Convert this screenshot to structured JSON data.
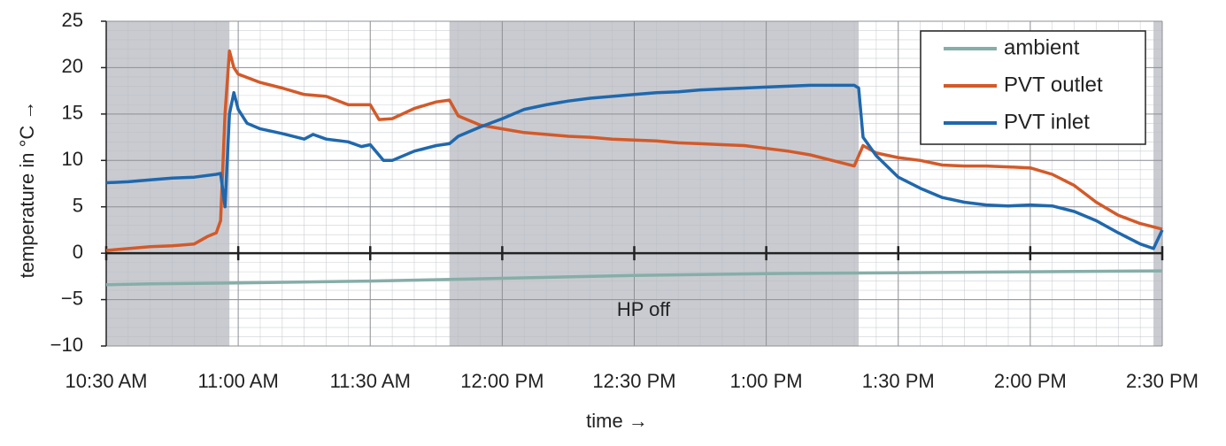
{
  "chart_data": {
    "type": "line",
    "xlabel": "time →",
    "ylabel": "temperature in °C →",
    "xlim": [
      "10:30 AM",
      "2:30 PM"
    ],
    "xticks": [
      "10:30 AM",
      "11:00 AM",
      "11:30 AM",
      "12:00 PM",
      "12:30 PM",
      "1:00 PM",
      "1:30 PM",
      "2:00 PM",
      "2:30 PM"
    ],
    "ylim": [
      -10,
      25
    ],
    "yticks": [
      {
        "value": -10,
        "label": "−10"
      },
      {
        "value": -5,
        "label": "−5"
      },
      0,
      5,
      10,
      15,
      20,
      25
    ],
    "grid": true,
    "legend": "top-right",
    "shaded_regions": [
      {
        "start": "10:30 AM",
        "end": "10:58 AM"
      },
      {
        "start": "11:48 AM",
        "end": "1:21 PM"
      },
      {
        "start": "2:28 PM",
        "end": "2:30 PM"
      }
    ],
    "annotation": "HP off",
    "series": [
      {
        "name": "ambient",
        "color": "#86aea9",
        "x": [
          "10:30 AM",
          "10:40 AM",
          "11:00 AM",
          "11:30 AM",
          "12:00 PM",
          "12:30 PM",
          "1:00 PM",
          "1:30 PM",
          "2:00 PM",
          "2:30 PM"
        ],
        "values": [
          -3.4,
          -3.3,
          -3.2,
          -3.0,
          -2.7,
          -2.4,
          -2.2,
          -2.1,
          -2.0,
          -1.9
        ]
      },
      {
        "name": "PVT outlet",
        "color": "#d35a29",
        "x": [
          "10:30 AM",
          "10:35 AM",
          "10:40 AM",
          "10:45 AM",
          "10:50 AM",
          "10:53 AM",
          "10:55 AM",
          "10:56 AM",
          "10:57 AM",
          "10:58 AM",
          "10:59 AM",
          "11:00 AM",
          "11:05 AM",
          "11:10 AM",
          "11:15 AM",
          "11:20 AM",
          "11:25 AM",
          "11:30 AM",
          "11:32 AM",
          "11:35 AM",
          "11:40 AM",
          "11:45 AM",
          "11:48 AM",
          "11:50 AM",
          "11:55 AM",
          "12:00 PM",
          "12:05 PM",
          "12:10 PM",
          "12:15 PM",
          "12:20 PM",
          "12:25 PM",
          "12:30 PM",
          "12:35 PM",
          "12:40 PM",
          "12:45 PM",
          "12:50 PM",
          "12:55 PM",
          "1:00 PM",
          "1:05 PM",
          "1:10 PM",
          "1:15 PM",
          "1:20 PM",
          "1:22 PM",
          "1:25 PM",
          "1:30 PM",
          "1:35 PM",
          "1:40 PM",
          "1:45 PM",
          "1:50 PM",
          "1:55 PM",
          "2:00 PM",
          "2:05 PM",
          "2:10 PM",
          "2:15 PM",
          "2:20 PM",
          "2:25 PM",
          "2:30 PM"
        ],
        "values": [
          0.3,
          0.5,
          0.7,
          0.8,
          1.0,
          1.8,
          2.2,
          3.5,
          15.0,
          21.8,
          20.0,
          19.3,
          18.4,
          17.8,
          17.1,
          16.9,
          16.0,
          16.0,
          14.4,
          14.5,
          15.6,
          16.3,
          16.5,
          14.8,
          13.8,
          13.4,
          13.0,
          12.8,
          12.6,
          12.5,
          12.3,
          12.2,
          12.1,
          11.9,
          11.8,
          11.7,
          11.6,
          11.3,
          11.0,
          10.6,
          10.0,
          9.4,
          11.6,
          10.8,
          10.3,
          10.0,
          9.5,
          9.4,
          9.4,
          9.3,
          9.2,
          8.5,
          7.3,
          5.5,
          4.1,
          3.2,
          2.6
        ]
      },
      {
        "name": "PVT inlet",
        "color": "#1f68ad",
        "x": [
          "10:30 AM",
          "10:35 AM",
          "10:40 AM",
          "10:45 AM",
          "10:50 AM",
          "10:55 AM",
          "10:56 AM",
          "10:57 AM",
          "10:58 AM",
          "10:59 AM",
          "11:00 AM",
          "11:02 AM",
          "11:05 AM",
          "11:10 AM",
          "11:15 AM",
          "11:17 AM",
          "11:20 AM",
          "11:25 AM",
          "11:28 AM",
          "11:30 AM",
          "11:33 AM",
          "11:35 AM",
          "11:40 AM",
          "11:45 AM",
          "11:48 AM",
          "11:50 AM",
          "11:55 AM",
          "12:00 PM",
          "12:05 PM",
          "12:10 PM",
          "12:15 PM",
          "12:20 PM",
          "12:25 PM",
          "12:30 PM",
          "12:35 PM",
          "12:40 PM",
          "12:45 PM",
          "12:50 PM",
          "12:55 PM",
          "1:00 PM",
          "1:05 PM",
          "1:10 PM",
          "1:15 PM",
          "1:20 PM",
          "1:21 PM",
          "1:22 PM",
          "1:25 PM",
          "1:30 PM",
          "1:35 PM",
          "1:40 PM",
          "1:45 PM",
          "1:50 PM",
          "1:55 PM",
          "2:00 PM",
          "2:05 PM",
          "2:10 PM",
          "2:15 PM",
          "2:20 PM",
          "2:25 PM",
          "2:28 PM",
          "2:30 PM"
        ],
        "values": [
          7.6,
          7.7,
          7.9,
          8.1,
          8.2,
          8.5,
          8.6,
          5.0,
          15.0,
          17.3,
          15.5,
          14.0,
          13.4,
          12.9,
          12.3,
          12.8,
          12.3,
          12.0,
          11.5,
          11.7,
          10.0,
          10.0,
          11.0,
          11.6,
          11.8,
          12.6,
          13.6,
          14.5,
          15.5,
          16.0,
          16.4,
          16.7,
          16.9,
          17.1,
          17.3,
          17.4,
          17.6,
          17.7,
          17.8,
          17.9,
          18.0,
          18.1,
          18.1,
          18.1,
          17.8,
          12.5,
          10.5,
          8.2,
          7.0,
          6.0,
          5.5,
          5.2,
          5.1,
          5.2,
          5.1,
          4.5,
          3.5,
          2.2,
          1.0,
          0.5,
          2.5
        ]
      }
    ]
  }
}
